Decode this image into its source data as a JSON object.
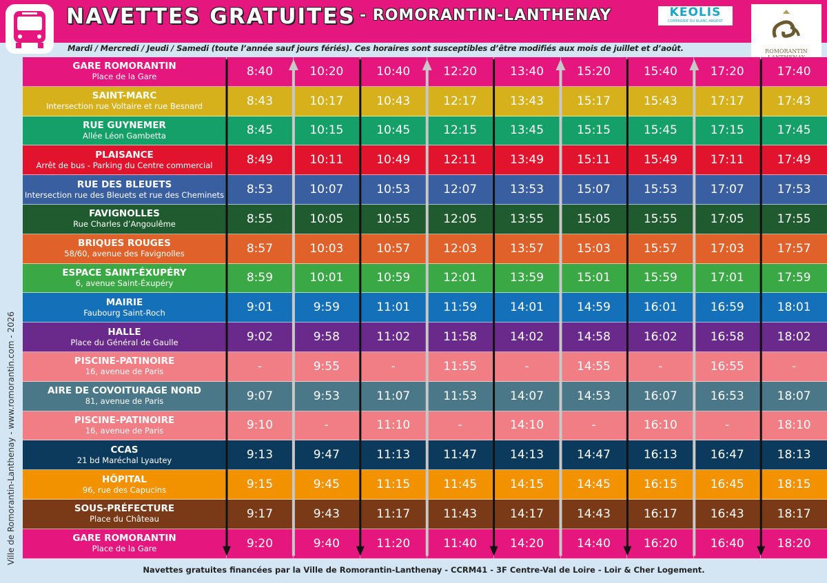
{
  "header": {
    "title": "NAVETTES GRATUITES",
    "town": "- ROMORANTIN-LANTHENAY",
    "keolis": "KEOLIS",
    "keolis_sub": "COMPAGNIE DU BLANC ARGENT",
    "crest": "ROMORANTIN LANTHENAY"
  },
  "subtitle": "Mardi / Mercredi / Jeudi / Samedi  (toute l’année sauf jours fériés). Ces horaires sont susceptibles d’être modifiés aux mois de juillet et d’août.",
  "side_text": "Ville de Romorantin-Lanthenay - www.romorantin.com - 2026",
  "table": {
    "rows": [
      {
        "name": "GARE ROMORANTIN",
        "address": "Place de la Gare",
        "color": "#e5177e",
        "times": [
          "8:40",
          "10:20",
          "10:40",
          "12:20",
          "13:40",
          "15:20",
          "15:40",
          "17:20",
          "17:40"
        ]
      },
      {
        "name": "SAINT-MARC",
        "address": "Intersection rue Voltaire et rue Besnard",
        "color": "#d6b11c",
        "times": [
          "8:43",
          "10:17",
          "10:43",
          "12:17",
          "13:43",
          "15:17",
          "15:43",
          "17:17",
          "17:43"
        ]
      },
      {
        "name": "RUE GUYNEMER",
        "address": "Allée Léon Gambetta",
        "color": "#14a068",
        "times": [
          "8:45",
          "10:15",
          "10:45",
          "12:15",
          "13:45",
          "15:15",
          "15:45",
          "17:15",
          "17:45"
        ]
      },
      {
        "name": "PLAISANCE",
        "address": "Arrêt de bus - Parking du Centre commercial",
        "color": "#e2142d",
        "times": [
          "8:49",
          "10:11",
          "10:49",
          "12:11",
          "13:49",
          "15:11",
          "15:49",
          "17:11",
          "17:49"
        ]
      },
      {
        "name": "RUE DES BLEUETS",
        "address": "Intersection rue des Bleuets et rue des Cheminets",
        "color": "#3a5fa0",
        "times": [
          "8:53",
          "10:07",
          "10:53",
          "12:07",
          "13:53",
          "15:07",
          "15:53",
          "17:07",
          "17:53"
        ]
      },
      {
        "name": "FAVIGNOLLES",
        "address": "Rue Charles d’Angoulême",
        "color": "#1f5b2f",
        "times": [
          "8:55",
          "10:05",
          "10:55",
          "12:05",
          "13:55",
          "15:05",
          "15:55",
          "17:05",
          "17:55"
        ]
      },
      {
        "name": "BRIQUES ROUGES",
        "address": "58/60, avenue des Favignolles",
        "color": "#e0622a",
        "times": [
          "8:57",
          "10:03",
          "10:57",
          "12:03",
          "13:57",
          "15:03",
          "15:57",
          "17:03",
          "17:57"
        ]
      },
      {
        "name": "ESPACE SAINT-ÉXUPÉRY",
        "address": "6, avenue Saint-Éxupéry",
        "color": "#3aa845",
        "times": [
          "8:59",
          "10:01",
          "10:59",
          "12:01",
          "13:59",
          "15:01",
          "15:59",
          "17:01",
          "17:59"
        ]
      },
      {
        "name": "MAIRIE",
        "address": "Faubourg Saint-Roch",
        "color": "#1470b8",
        "times": [
          "9:01",
          "9:59",
          "11:01",
          "11:59",
          "14:01",
          "14:59",
          "16:01",
          "16:59",
          "18:01"
        ]
      },
      {
        "name": "HALLE",
        "address": "Place du Général de Gaulle",
        "color": "#6a2a8b",
        "times": [
          "9:02",
          "9:58",
          "11:02",
          "11:58",
          "14:02",
          "14:58",
          "16:02",
          "16:58",
          "18:02"
        ]
      },
      {
        "name": "PISCINE-PATINOIRE",
        "address": "16, avenue de Paris",
        "color": "#f07e84",
        "times": [
          "-",
          "9:55",
          "-",
          "11:55",
          "-",
          "14:55",
          "-",
          "16:55",
          "-"
        ]
      },
      {
        "name": "AIRE DE COVOITURAGE NORD",
        "address": "81, avenue de Paris",
        "color": "#4b7889",
        "times": [
          "9:07",
          "9:53",
          "11:07",
          "11:53",
          "14:07",
          "14:53",
          "16:07",
          "16:53",
          "18:07"
        ]
      },
      {
        "name": "PISCINE-PATINOIRE",
        "address": "16, avenue de Paris",
        "color": "#f07e84",
        "times": [
          "9:10",
          "-",
          "11:10",
          "-",
          "14:10",
          "-",
          "16:10",
          "-",
          "18:10"
        ]
      },
      {
        "name": "CCAS",
        "address": "21 bd Maréchal Lyautey",
        "color": "#0c3a5c",
        "times": [
          "9:13",
          "9:47",
          "11:13",
          "11:47",
          "14:13",
          "14:47",
          "16:13",
          "16:47",
          "18:13"
        ]
      },
      {
        "name": "HÔPITAL",
        "address": "96, rue des Capucins",
        "color": "#f39200",
        "times": [
          "9:15",
          "9:45",
          "11:15",
          "11:45",
          "14:15",
          "14:45",
          "16:15",
          "16:45",
          "18:15"
        ]
      },
      {
        "name": "SOUS-PRÉFECTURE",
        "address": "Place du Château",
        "color": "#7a3a18",
        "times": [
          "9:17",
          "9:43",
          "11:17",
          "11:43",
          "14:17",
          "14:43",
          "16:17",
          "16:43",
          "18:17"
        ]
      },
      {
        "name": "GARE ROMORANTIN",
        "address": "Place de la Gare",
        "color": "#e5177e",
        "times": [
          "9:20",
          "9:40",
          "11:20",
          "11:40",
          "14:20",
          "14:40",
          "16:20",
          "16:40",
          "18:20"
        ]
      }
    ]
  },
  "footer": "Navettes gratuites financées par la Ville de Romorantin-Lanthenay - CCRM41 - 3F Centre-Val de Loire - Loir & Cher Logement."
}
